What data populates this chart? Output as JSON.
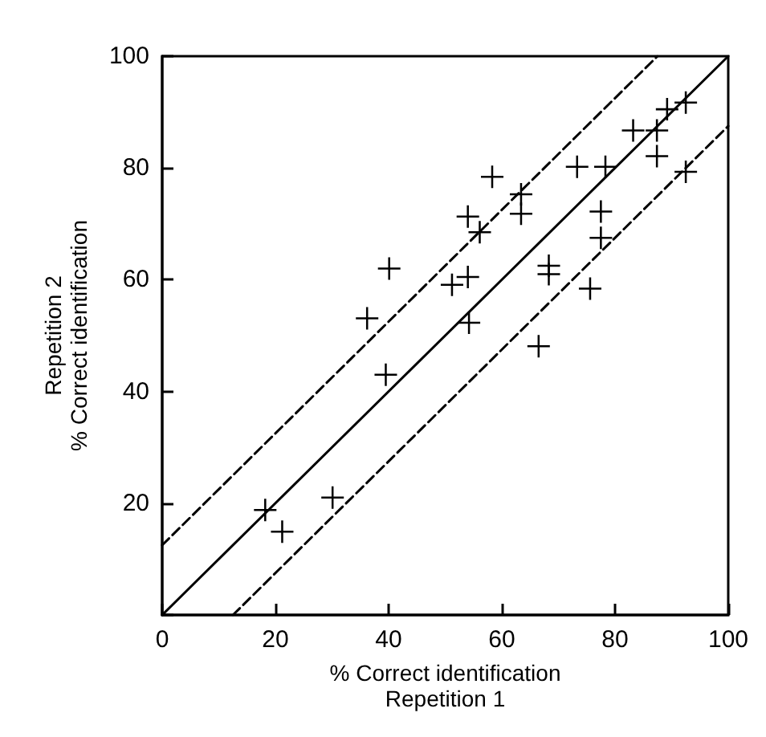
{
  "chart_data": {
    "type": "scatter",
    "xlabel": "% Correct identification\nRepetition 1",
    "ylabel": "Repetition 2\n% Correct identification",
    "xlim": [
      0,
      100
    ],
    "ylim": [
      0,
      100
    ],
    "xticks": [
      0,
      20,
      40,
      60,
      80,
      100
    ],
    "yticks": [
      {
        "value": 0,
        "label": null
      },
      20,
      40,
      60,
      80,
      100
    ],
    "grid": false,
    "marker": "cross",
    "series": [
      {
        "color": "#000000",
        "x": [
          18.2,
          21.2,
          30.1,
          39.5,
          40.1,
          36.2,
          92.5,
          89.2,
          83.2,
          87.4,
          87.4,
          92.5,
          73.3,
          78.3,
          58.3,
          63.4,
          63.4,
          54.0,
          56.1,
          77.5,
          77.5,
          51.2,
          54.0,
          68.3,
          68.3,
          75.6,
          54.2,
          66.5
        ],
        "values": [
          18.8,
          14.9,
          21.0,
          43.0,
          62.0,
          53.1,
          91.7,
          90.5,
          86.7,
          86.7,
          82.1,
          79.3,
          80.2,
          80.2,
          78.4,
          75.3,
          71.8,
          71.3,
          68.5,
          72.2,
          67.5,
          59.1,
          60.5,
          62.5,
          61.0,
          58.4,
          52.3,
          48.1
        ]
      },
      {
        "type": "line",
        "color": "#000000",
        "line_style": "solid",
        "marker": "none",
        "x": [
          0,
          100
        ],
        "values": [
          0,
          100
        ]
      },
      {
        "type": "line",
        "color": "#000000",
        "line_style": "dashed",
        "marker": "none",
        "x": [
          0,
          87.5
        ],
        "values": [
          12.5,
          100
        ]
      },
      {
        "type": "line",
        "color": "#000000",
        "line_style": "dashed",
        "marker": "none",
        "x": [
          12.5,
          100
        ],
        "values": [
          0,
          87.5
        ]
      }
    ]
  }
}
